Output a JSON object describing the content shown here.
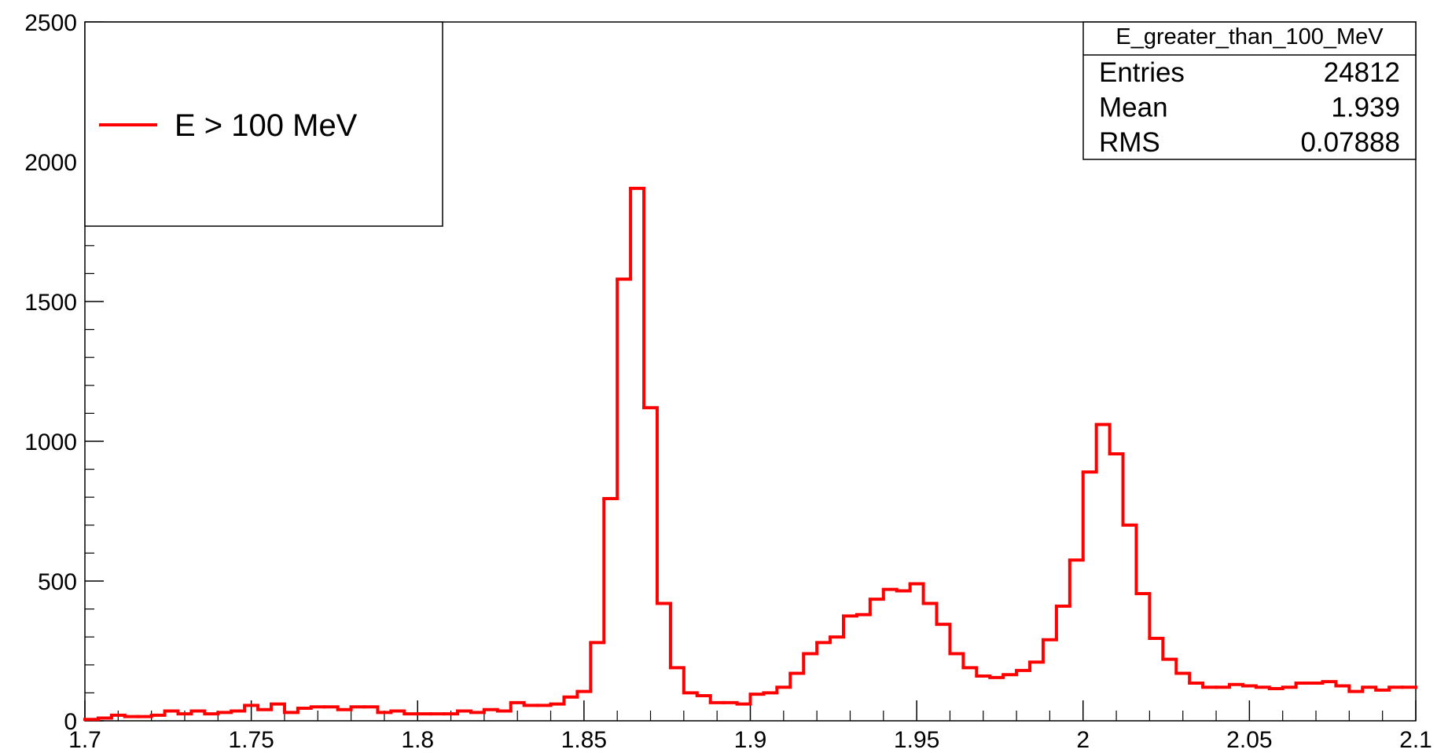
{
  "chart_data": {
    "type": "histogram",
    "legend": {
      "label": "E > 100 MeV",
      "corner": "top-left"
    },
    "stats": {
      "title": "E_greater_than_100_MeV",
      "rows": [
        [
          "Entries",
          24812
        ],
        [
          "Mean",
          1.939
        ],
        [
          "RMS",
          0.07888
        ]
      ]
    },
    "color": "#ff0000",
    "bins": [
      1.7,
      1.704,
      1.708,
      1.712,
      1.716,
      1.72,
      1.724,
      1.728,
      1.732,
      1.736,
      1.74,
      1.744,
      1.748,
      1.752,
      1.756,
      1.76,
      1.764,
      1.768,
      1.772,
      1.776,
      1.78,
      1.784,
      1.788,
      1.792,
      1.796,
      1.8,
      1.804,
      1.808,
      1.812,
      1.816,
      1.82,
      1.824,
      1.828,
      1.832,
      1.836,
      1.84,
      1.844,
      1.848,
      1.852,
      1.856,
      1.86,
      1.864,
      1.868,
      1.872,
      1.876,
      1.88,
      1.884,
      1.888,
      1.892,
      1.896,
      1.9,
      1.904,
      1.908,
      1.912,
      1.916,
      1.92,
      1.924,
      1.928,
      1.932,
      1.936,
      1.94,
      1.944,
      1.948,
      1.952,
      1.956,
      1.96,
      1.964,
      1.968,
      1.972,
      1.976,
      1.98,
      1.984,
      1.988,
      1.992,
      1.996,
      2.0,
      2.004,
      2.008,
      2.012,
      2.016,
      2.02,
      2.024,
      2.028,
      2.032,
      2.036,
      2.04,
      2.044,
      2.048,
      2.052,
      2.056,
      2.06,
      2.064,
      2.068,
      2.072,
      2.076,
      2.08,
      2.084,
      2.088,
      2.092,
      2.096,
      2.1
    ],
    "values": [
      5,
      10,
      20,
      15,
      15,
      20,
      35,
      25,
      35,
      25,
      30,
      35,
      55,
      40,
      60,
      30,
      45,
      50,
      50,
      40,
      50,
      50,
      30,
      35,
      25,
      25,
      25,
      25,
      35,
      30,
      40,
      35,
      65,
      55,
      55,
      60,
      85,
      105,
      280,
      795,
      1580,
      1905,
      1120,
      420,
      190,
      100,
      90,
      65,
      65,
      60,
      95,
      100,
      120,
      170,
      240,
      280,
      300,
      375,
      380,
      435,
      470,
      465,
      490,
      420,
      345,
      240,
      190,
      160,
      155,
      165,
      180,
      210,
      290,
      410,
      575,
      890,
      1060,
      955,
      700,
      455,
      295,
      220,
      170,
      135,
      120,
      120,
      130,
      125,
      120,
      115,
      120,
      135,
      135,
      140,
      125,
      105,
      120,
      110,
      120,
      120
    ],
    "xlim": [
      1.7,
      2.1
    ],
    "xticks": [
      1.7,
      1.75,
      1.8,
      1.85,
      1.9,
      1.95,
      2,
      2.05,
      2.1
    ],
    "ylim": [
      0,
      2500
    ],
    "yticks": [
      0,
      500,
      1000,
      1500,
      2000,
      2500
    ]
  }
}
